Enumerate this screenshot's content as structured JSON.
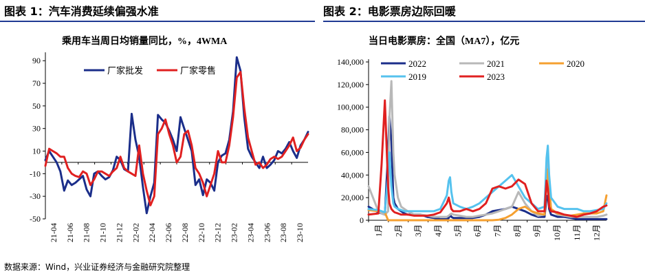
{
  "titles": {
    "left": "图表 1：汽车消费延续偏强水准",
    "right": "图表 2：电影票房边际回暖"
  },
  "source": "数据来源：Wind，兴业证券经济与金融研究院整理",
  "colors": {
    "navy": "#1b2e8a",
    "red": "#e02020",
    "gray": "#b8b8b8",
    "orange": "#f5a030",
    "lightblue": "#55c2ee",
    "rule": "#1f3a93"
  },
  "chart_data": [
    {
      "type": "line",
      "title": "乘用车当周日均销量同比，%，4WMA",
      "xlabel": "",
      "ylabel": "",
      "ylim": [
        -50,
        95
      ],
      "yticks": [
        -50,
        -30,
        -10,
        10,
        30,
        50,
        70,
        90
      ],
      "xtick_labels": [
        "21-04",
        "21-06",
        "21-08",
        "21-10",
        "21-12",
        "22-02",
        "22-04",
        "22-06",
        "22-08",
        "22-10",
        "22-12",
        "23-02",
        "23-04",
        "23-06",
        "23-08",
        "23-10"
      ],
      "x_range": [
        0,
        140
      ],
      "x": [
        0,
        2,
        4,
        6,
        8,
        10,
        12,
        14,
        16,
        18,
        20,
        22,
        24,
        26,
        28,
        30,
        32,
        34,
        36,
        38,
        40,
        42,
        44,
        46,
        48,
        50,
        52,
        54,
        56,
        58,
        60,
        62,
        64,
        66,
        68,
        70,
        72,
        74,
        76,
        78,
        80,
        82,
        84,
        86,
        88,
        90,
        92,
        94,
        96,
        98,
        100,
        102,
        104,
        106,
        108,
        110,
        112,
        114,
        116,
        118,
        120,
        122,
        124,
        126,
        128,
        130,
        132,
        134,
        136,
        138,
        140
      ],
      "series": [
        {
          "name": "厂家批发",
          "color": "navy",
          "values": [
            2,
            10,
            5,
            0,
            -8,
            -25,
            -16,
            -20,
            -18,
            -15,
            -12,
            -24,
            -30,
            -10,
            -8,
            -12,
            -15,
            -13,
            -7,
            5,
            2,
            -6,
            -8,
            43,
            20,
            5,
            -22,
            -45,
            -30,
            -18,
            42,
            38,
            35,
            28,
            20,
            10,
            40,
            30,
            20,
            10,
            -20,
            -15,
            -29,
            -15,
            -18,
            -25,
            0,
            6,
            8,
            20,
            45,
            93,
            81,
            40,
            12,
            5,
            0,
            -5,
            5,
            -5,
            -2,
            2,
            10,
            8,
            12,
            18,
            10,
            4,
            15,
            20,
            27
          ]
        },
        {
          "name": "厂家零售",
          "color": "red",
          "values": [
            -3,
            12,
            10,
            8,
            5,
            5,
            -5,
            -10,
            -12,
            -13,
            -8,
            -10,
            -20,
            -15,
            -8,
            -8,
            -10,
            -12,
            -8,
            -5,
            5,
            -5,
            -8,
            -10,
            -12,
            15,
            -10,
            -25,
            -38,
            -30,
            25,
            30,
            38,
            25,
            15,
            0,
            5,
            25,
            28,
            15,
            -5,
            -10,
            -18,
            -30,
            -20,
            -10,
            10,
            0,
            0,
            15,
            40,
            75,
            80,
            48,
            22,
            10,
            -2,
            0,
            -5,
            -2,
            3,
            5,
            3,
            5,
            10,
            15,
            22,
            10,
            13,
            20,
            25
          ]
        }
      ],
      "legend": "top-left"
    },
    {
      "type": "line",
      "title": "当日电影票房：全国（MA7），亿元",
      "xlabel": "",
      "ylabel": "",
      "ylim": [
        0,
        140000
      ],
      "yticks": [
        0,
        20000,
        40000,
        60000,
        80000,
        100000,
        120000,
        140000
      ],
      "ytick_labels": [
        "0",
        "20,000",
        "40,000",
        "60,000",
        "80,000",
        "100,000",
        "120,000",
        "140,000"
      ],
      "xtick_labels": [
        "1月",
        "2月",
        "3月",
        "4月",
        "5月",
        "6月",
        "7月",
        "8月",
        "9月",
        "10月",
        "11月",
        "12月"
      ],
      "x_range": [
        0,
        365
      ],
      "x": [
        0,
        15,
        20,
        25,
        30,
        32,
        35,
        38,
        40,
        45,
        50,
        55,
        60,
        70,
        80,
        90,
        100,
        110,
        120,
        123,
        125,
        127,
        130,
        140,
        150,
        160,
        170,
        180,
        190,
        200,
        210,
        220,
        230,
        240,
        250,
        260,
        270,
        273,
        275,
        277,
        280,
        290,
        300,
        310,
        320,
        330,
        340,
        350,
        360,
        365
      ],
      "series": [
        {
          "name": "2022",
          "color": "navy",
          "values": [
            12000,
            7000,
            6000,
            5000,
            60000,
            92000,
            70000,
            20000,
            15000,
            10000,
            8000,
            6000,
            5000,
            5000,
            5000,
            3000,
            2000,
            1000,
            1000,
            2000,
            5000,
            3000,
            2000,
            2000,
            2000,
            2000,
            3000,
            5000,
            8000,
            9000,
            10000,
            12000,
            10000,
            8000,
            5000,
            3000,
            3000,
            20000,
            22000,
            10000,
            5000,
            3000,
            3000,
            2000,
            1000,
            1000,
            1000,
            1000,
            1000,
            1000
          ]
        },
        {
          "name": "2021",
          "color": "gray",
          "values": [
            30000,
            8000,
            6000,
            5000,
            8000,
            90000,
            123000,
            60000,
            40000,
            20000,
            12000,
            10000,
            8000,
            5000,
            5000,
            4000,
            3000,
            3000,
            3000,
            4000,
            5000,
            6000,
            5000,
            4000,
            3000,
            3000,
            4000,
            5000,
            6000,
            8000,
            10000,
            12000,
            25000,
            15000,
            8000,
            4000,
            5000,
            40000,
            60000,
            30000,
            10000,
            5000,
            4000,
            3000,
            3000,
            3000,
            3000,
            3000,
            4000,
            5000
          ]
        },
        {
          "name": "2020",
          "color": "orange",
          "values": [
            9000,
            8000,
            8000,
            7000,
            0,
            0,
            0,
            0,
            0,
            0,
            0,
            0,
            0,
            0,
            0,
            0,
            0,
            0,
            0,
            0,
            0,
            0,
            0,
            0,
            0,
            0,
            0,
            0,
            0,
            500,
            2000,
            5000,
            10000,
            12000,
            8000,
            6000,
            5000,
            35000,
            45000,
            30000,
            10000,
            6000,
            5000,
            4000,
            5000,
            6000,
            6000,
            6000,
            8000,
            22000
          ]
        },
        {
          "name": "2019",
          "color": "lightblue",
          "values": [
            10000,
            9000,
            8000,
            7000,
            40000,
            60000,
            30000,
            15000,
            12000,
            10000,
            9000,
            8000,
            8000,
            8000,
            8000,
            8000,
            8000,
            10000,
            22000,
            35000,
            38000,
            25000,
            15000,
            12000,
            10000,
            12000,
            15000,
            20000,
            25000,
            30000,
            35000,
            40000,
            30000,
            20000,
            15000,
            10000,
            12000,
            55000,
            66000,
            40000,
            20000,
            12000,
            10000,
            10000,
            10000,
            8000,
            8000,
            9000,
            10000,
            15000
          ]
        },
        {
          "name": "2023",
          "color": "red",
          "values": [
            5000,
            6000,
            50000,
            106000,
            30000,
            15000,
            10000,
            8000,
            7000,
            6000,
            5000,
            5000,
            5000,
            4000,
            4000,
            4000,
            5000,
            7000,
            15000,
            20000,
            15000,
            10000,
            8000,
            8000,
            10000,
            8000,
            10000,
            15000,
            28000,
            30000,
            28000,
            30000,
            36000,
            32000,
            15000,
            8000,
            8000,
            35000,
            28000,
            12000,
            8000,
            7000,
            5000,
            4000,
            3000,
            5000,
            6000,
            8000,
            12000,
            13000
          ]
        }
      ],
      "legend": "top"
    }
  ]
}
